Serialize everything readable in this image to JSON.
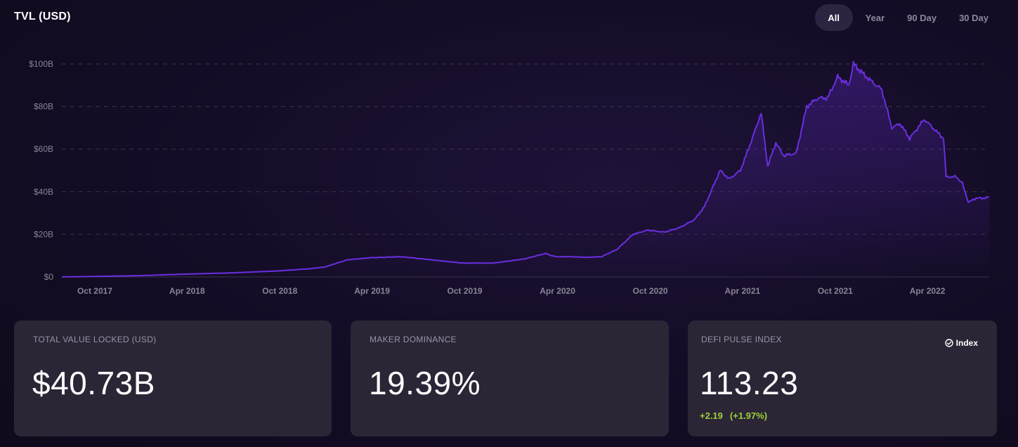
{
  "header": {
    "title": "TVL (USD)",
    "ranges": [
      {
        "label": "All",
        "active": true
      },
      {
        "label": "Year",
        "active": false
      },
      {
        "label": "90 Day",
        "active": false
      },
      {
        "label": "30 Day",
        "active": false
      }
    ]
  },
  "chart_data": {
    "type": "area",
    "ylim": [
      0,
      100
    ],
    "y_unit": "billion USD",
    "y_ticks": [
      "$0",
      "$20B",
      "$40B",
      "$60B",
      "$80B",
      "$100B"
    ],
    "x_ticks": [
      "Oct 2017",
      "Apr 2018",
      "Oct 2018",
      "Apr 2019",
      "Oct 2019",
      "Apr 2020",
      "Oct 2020",
      "Apr 2021",
      "Oct 2021",
      "Apr 2022"
    ],
    "grid": true,
    "line_color": "#6a2ee0",
    "x": [
      "2017-08-01",
      "2017-10-01",
      "2018-01-01",
      "2018-04-01",
      "2018-07-01",
      "2018-10-01",
      "2018-12-01",
      "2019-01-01",
      "2019-02-15",
      "2019-04-01",
      "2019-06-01",
      "2019-08-01",
      "2019-10-01",
      "2019-12-01",
      "2020-02-01",
      "2020-03-12",
      "2020-04-01",
      "2020-05-01",
      "2020-06-01",
      "2020-07-01",
      "2020-08-01",
      "2020-09-01",
      "2020-10-01",
      "2020-11-01",
      "2020-12-01",
      "2021-01-01",
      "2021-01-20",
      "2021-02-20",
      "2021-03-10",
      "2021-04-01",
      "2021-04-20",
      "2021-05-12",
      "2021-05-25",
      "2021-06-10",
      "2021-06-25",
      "2021-07-20",
      "2021-08-10",
      "2021-09-01",
      "2021-09-20",
      "2021-10-10",
      "2021-11-01",
      "2021-11-10",
      "2021-12-01",
      "2021-12-20",
      "2022-01-05",
      "2022-01-25",
      "2022-02-10",
      "2022-03-01",
      "2022-03-30",
      "2022-04-20",
      "2022-05-07",
      "2022-05-12",
      "2022-06-01",
      "2022-06-13",
      "2022-06-25",
      "2022-07-10",
      "2022-07-25",
      "2022-08-05"
    ],
    "series": [
      {
        "values": [
          0,
          0.2,
          0.6,
          1.3,
          1.9,
          2.8,
          3.8,
          4.6,
          8.0,
          9.0,
          9.5,
          8.0,
          6.5,
          6.5,
          8.5,
          11,
          9.5,
          9.5,
          9.2,
          9.5,
          13,
          20,
          22,
          21,
          23,
          27,
          33,
          50,
          46,
          50,
          62,
          77,
          52,
          63,
          57,
          58,
          80,
          84,
          84,
          94,
          90,
          100,
          95,
          91,
          88,
          70,
          72,
          65,
          74,
          69,
          65,
          47,
          47,
          44,
          35,
          37,
          37,
          37.5
        ]
      }
    ]
  },
  "cards": [
    {
      "label": "TOTAL VALUE LOCKED (USD)",
      "value": "$40.73B"
    },
    {
      "label": "MAKER DOMINANCE",
      "value": "19.39%"
    },
    {
      "label": "DEFI PULSE INDEX",
      "value": "113.23",
      "change": "+2.19",
      "change_pct": "(+1.97%)",
      "link_label": "Index",
      "link_icon": "check-circle-icon"
    }
  ]
}
